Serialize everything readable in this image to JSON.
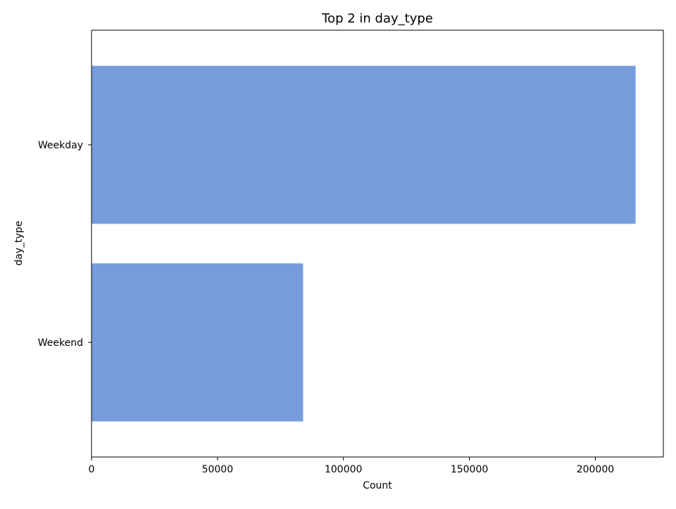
{
  "chart_data": {
    "type": "bar",
    "orientation": "horizontal",
    "title": "Top 2 in day_type",
    "xlabel": "Count",
    "ylabel": "day_type",
    "categories": [
      "Weekday",
      "Weekend"
    ],
    "values": [
      216000,
      84000
    ],
    "xlim": [
      0,
      227000
    ],
    "xticks": [
      0,
      50000,
      100000,
      150000,
      200000
    ],
    "grid": false,
    "legend": "none",
    "bar_color": "#779cdc"
  }
}
